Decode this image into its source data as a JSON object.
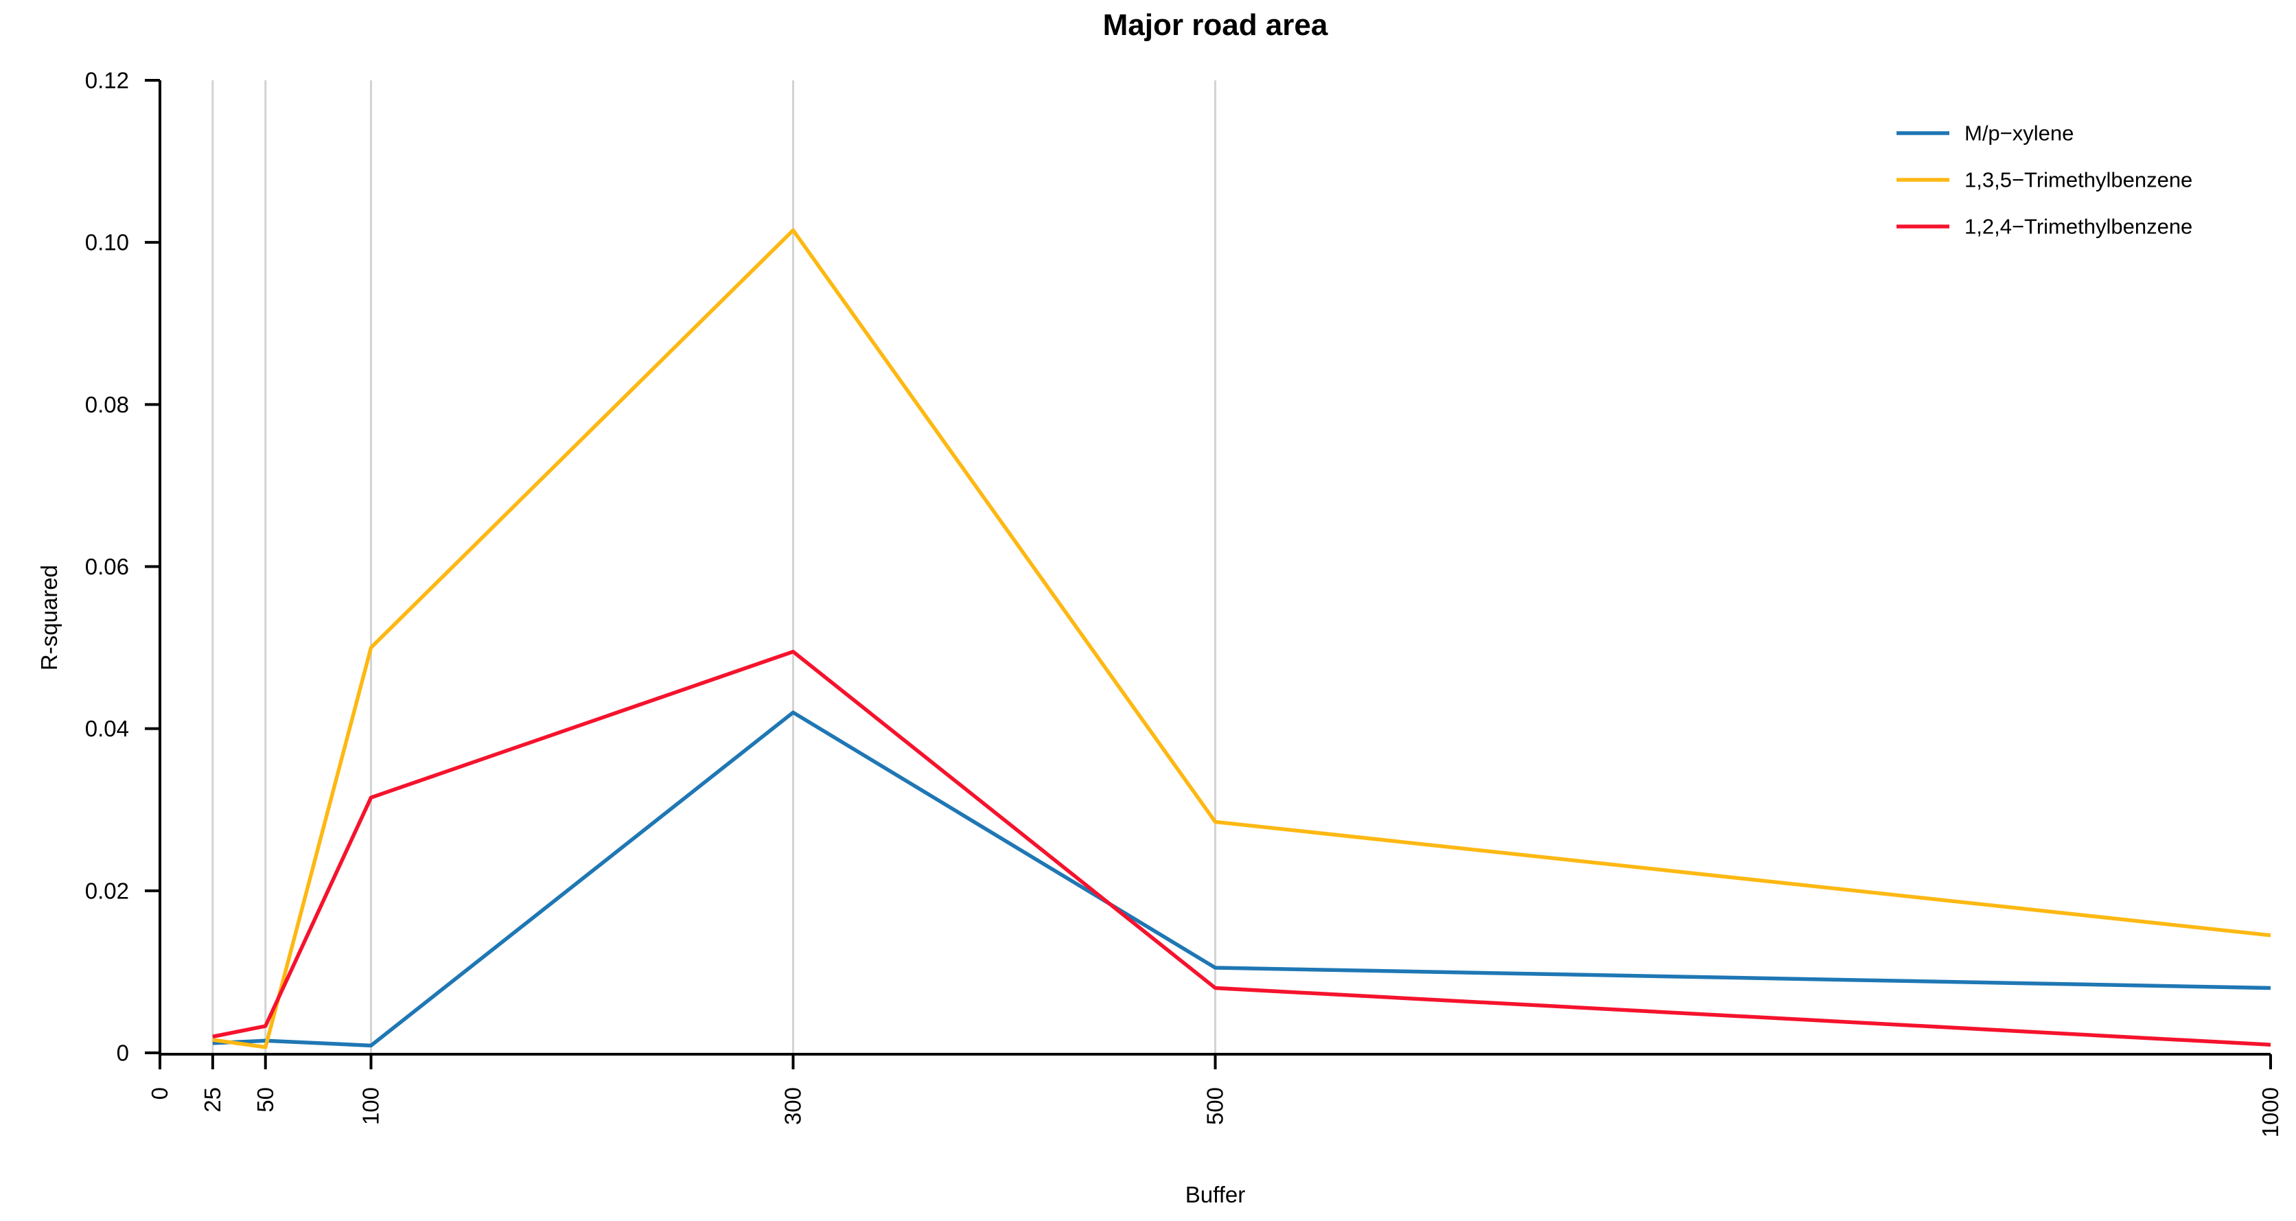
{
  "chart_data": {
    "type": "line",
    "title": "Major road area",
    "xlabel": "Buffer",
    "ylabel": "R-squared",
    "x": [
      25,
      50,
      100,
      300,
      500,
      1000
    ],
    "xlim": [
      0,
      1000
    ],
    "ylim": [
      0,
      0.12
    ],
    "x_ticks": [
      0,
      25,
      50,
      100,
      300,
      500,
      1000
    ],
    "x_tick_labels": [
      "0",
      "25",
      "50",
      "100",
      "300",
      "500",
      "1000"
    ],
    "y_ticks": [
      0,
      0.02,
      0.04,
      0.06,
      0.08,
      0.1,
      0.12
    ],
    "y_tick_labels": [
      "0",
      "0.02",
      "0.04",
      "0.06",
      "0.08",
      "0.10",
      "0.12"
    ],
    "gridlines_x": [
      25,
      50,
      100,
      300,
      500
    ],
    "grid_on": true,
    "grid_color": "#D3D3D3",
    "axis_color": "#000000",
    "legend_position": "top-right",
    "series": [
      {
        "name": "M/p−xylene",
        "color": "#1F77B4",
        "values": [
          0.0012,
          0.0015,
          0.0009,
          0.042,
          0.0105,
          0.008
        ]
      },
      {
        "name": "1,3,5−Trimethylbenzene",
        "color": "#FDB813",
        "values": [
          0.0016,
          0.0007,
          0.05,
          0.1015,
          0.0285,
          0.0145
        ]
      },
      {
        "name": "1,2,4−Trimethylbenzene",
        "color": "#F5132D",
        "values": [
          0.002,
          0.0033,
          0.0315,
          0.0495,
          0.008,
          0.001
        ]
      }
    ]
  }
}
